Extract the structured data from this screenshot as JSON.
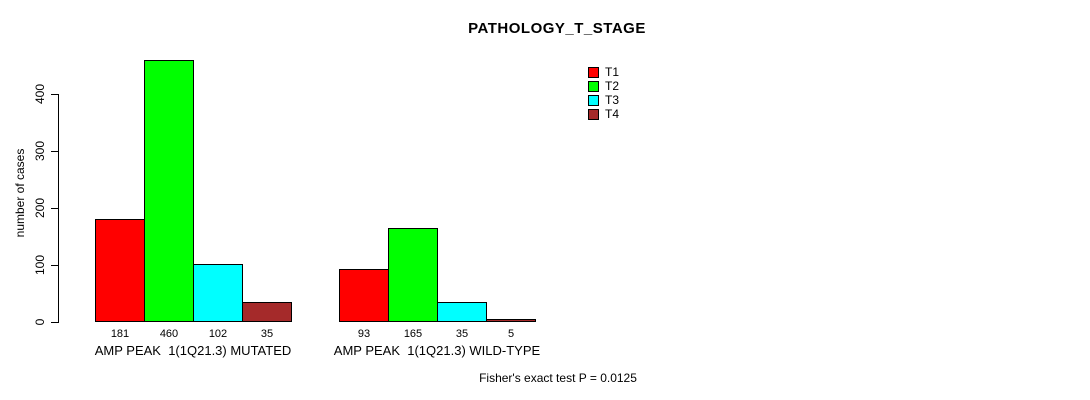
{
  "chart_data": {
    "type": "bar",
    "title": "PATHOLOGY_T_STAGE",
    "ylabel": "number of cases",
    "xlabel": "",
    "ylim": [
      0,
      460
    ],
    "y_ticks": [
      0,
      100,
      200,
      300,
      400
    ],
    "grid": false,
    "legend_position": "top-right",
    "categories": [
      "AMP PEAK  1(1Q21.3) MUTATED",
      "AMP PEAK  1(1Q21.3) WILD-TYPE"
    ],
    "series": [
      {
        "name": "T1",
        "color": "#FF0000",
        "values": [
          181,
          93
        ]
      },
      {
        "name": "T2",
        "color": "#00FF00",
        "values": [
          460,
          165
        ]
      },
      {
        "name": "T3",
        "color": "#00FFFF",
        "values": [
          102,
          35
        ]
      },
      {
        "name": "T4",
        "color": "#A52A2A",
        "values": [
          35,
          5
        ]
      }
    ],
    "bar_value_labels": [
      [
        181,
        460,
        102,
        35
      ],
      [
        93,
        165,
        35,
        5
      ]
    ],
    "annotation": "Fisher's exact test P = 0.0125"
  }
}
